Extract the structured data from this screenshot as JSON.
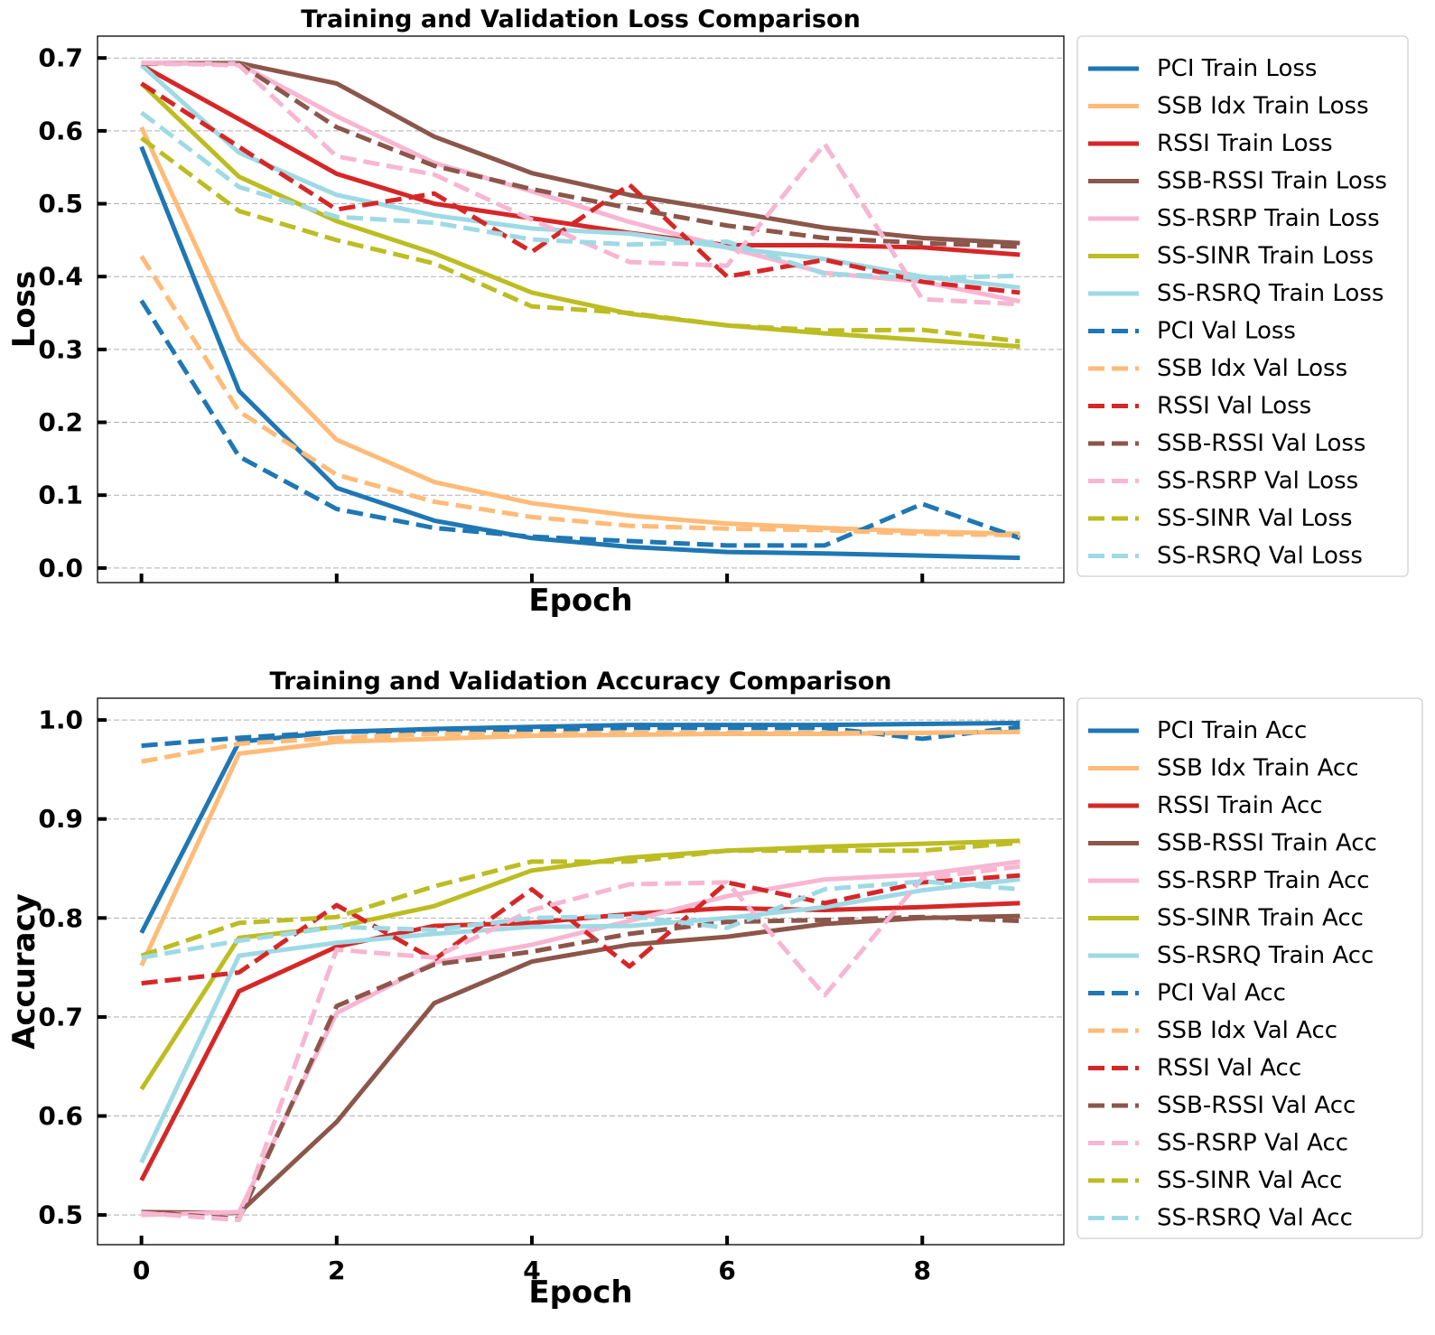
{
  "chart_data": [
    {
      "type": "line",
      "title": "Training and Validation Loss Comparison",
      "xlabel": "Epoch",
      "ylabel": "Loss",
      "xlim": [
        -0.45,
        9.45
      ],
      "ylim": [
        -0.02,
        0.73
      ],
      "xticks": [
        0,
        2,
        4,
        6,
        8
      ],
      "show_xtick_labels": false,
      "yticks": [
        0.0,
        0.1,
        0.2,
        0.3,
        0.4,
        0.5,
        0.6,
        0.7
      ],
      "ytick_labels": [
        "0.0",
        "0.1",
        "0.2",
        "0.3",
        "0.4",
        "0.5",
        "0.6",
        "0.7"
      ],
      "grid": "y-dashed",
      "legend": "outside-right",
      "x": [
        0,
        1,
        2,
        3,
        4,
        5,
        6,
        7,
        8,
        9
      ],
      "series": [
        {
          "name": "PCI Train Loss",
          "color": "#1f77b4",
          "dash": "solid",
          "values": [
            0.578,
            0.243,
            0.11,
            0.065,
            0.041,
            0.029,
            0.022,
            0.02,
            0.017,
            0.014
          ]
        },
        {
          "name": "SSB Idx Train Loss",
          "color": "#ffbb78",
          "dash": "solid",
          "values": [
            0.605,
            0.313,
            0.176,
            0.118,
            0.089,
            0.072,
            0.061,
            0.055,
            0.05,
            0.047
          ]
        },
        {
          "name": "RSSI Train Loss",
          "color": "#d62728",
          "dash": "solid",
          "values": [
            0.69,
            0.616,
            0.541,
            0.5,
            0.48,
            0.46,
            0.443,
            0.443,
            0.44,
            0.43
          ]
        },
        {
          "name": "SSB-RSSI Train Loss",
          "color": "#8c564b",
          "dash": "solid",
          "values": [
            0.693,
            0.693,
            0.665,
            0.592,
            0.542,
            0.512,
            0.49,
            0.467,
            0.453,
            0.446
          ]
        },
        {
          "name": "SS-RSRP Train Loss",
          "color": "#f7b6d2",
          "dash": "solid",
          "values": [
            0.693,
            0.692,
            0.62,
            0.556,
            0.517,
            0.475,
            0.44,
            0.405,
            0.393,
            0.366
          ]
        },
        {
          "name": "SS-SINR Train Loss",
          "color": "#bcbd22",
          "dash": "solid",
          "values": [
            0.665,
            0.537,
            0.476,
            0.432,
            0.378,
            0.349,
            0.333,
            0.322,
            0.313,
            0.304
          ]
        },
        {
          "name": "SS-RSRQ Train Loss",
          "color": "#9edae5",
          "dash": "solid",
          "values": [
            0.69,
            0.57,
            0.512,
            0.484,
            0.466,
            0.459,
            0.44,
            0.424,
            0.4,
            0.385
          ]
        },
        {
          "name": "PCI Val Loss",
          "color": "#1f77b4",
          "dash": "dashed",
          "values": [
            0.367,
            0.153,
            0.081,
            0.055,
            0.043,
            0.037,
            0.031,
            0.031,
            0.088,
            0.041
          ]
        },
        {
          "name": "SSB Idx Val Loss",
          "color": "#ffbb78",
          "dash": "dashed",
          "values": [
            0.428,
            0.215,
            0.128,
            0.091,
            0.07,
            0.058,
            0.054,
            0.052,
            0.047,
            0.045
          ]
        },
        {
          "name": "RSSI Val Loss",
          "color": "#d62728",
          "dash": "dashed",
          "values": [
            0.665,
            0.578,
            0.492,
            0.514,
            0.434,
            0.526,
            0.4,
            0.423,
            0.393,
            0.378
          ]
        },
        {
          "name": "SSB-RSSI Val Loss",
          "color": "#8c564b",
          "dash": "dashed",
          "values": [
            0.692,
            0.692,
            0.605,
            0.552,
            0.52,
            0.494,
            0.47,
            0.453,
            0.446,
            0.441
          ]
        },
        {
          "name": "SS-RSRP Val Loss",
          "color": "#f7b6d2",
          "dash": "dashed",
          "values": [
            0.693,
            0.69,
            0.565,
            0.54,
            0.478,
            0.42,
            0.415,
            0.582,
            0.369,
            0.362
          ]
        },
        {
          "name": "SS-SINR Val Loss",
          "color": "#bcbd22",
          "dash": "dashed",
          "values": [
            0.59,
            0.49,
            0.45,
            0.418,
            0.359,
            0.35,
            0.333,
            0.326,
            0.327,
            0.311
          ]
        },
        {
          "name": "SS-RSRQ Val Loss",
          "color": "#9edae5",
          "dash": "dashed",
          "values": [
            0.625,
            0.523,
            0.482,
            0.474,
            0.451,
            0.444,
            0.448,
            0.404,
            0.398,
            0.401
          ]
        }
      ]
    },
    {
      "type": "line",
      "title": "Training and Validation Accuracy Comparison",
      "xlabel": "Epoch",
      "ylabel": "Accuracy",
      "xlim": [
        -0.45,
        9.45
      ],
      "ylim": [
        0.47,
        1.022
      ],
      "xticks": [
        0,
        2,
        4,
        6,
        8
      ],
      "xtick_labels": [
        "0",
        "2",
        "4",
        "6",
        "8"
      ],
      "show_xtick_labels": true,
      "yticks": [
        0.5,
        0.6,
        0.7,
        0.8,
        0.9,
        1.0
      ],
      "ytick_labels": [
        "0.5",
        "0.6",
        "0.7",
        "0.8",
        "0.9",
        "1.0"
      ],
      "grid": "y-dashed",
      "legend": "outside-right",
      "x": [
        0,
        1,
        2,
        3,
        4,
        5,
        6,
        7,
        8,
        9
      ],
      "series": [
        {
          "name": "PCI Train Acc",
          "color": "#1f77b4",
          "dash": "solid",
          "values": [
            0.785,
            0.978,
            0.988,
            0.991,
            0.993,
            0.995,
            0.995,
            0.995,
            0.996,
            0.997
          ]
        },
        {
          "name": "SSB Idx Train Acc",
          "color": "#ffbb78",
          "dash": "solid",
          "values": [
            0.752,
            0.966,
            0.978,
            0.981,
            0.984,
            0.985,
            0.986,
            0.986,
            0.987,
            0.988
          ]
        },
        {
          "name": "RSSI Train Acc",
          "color": "#d62728",
          "dash": "solid",
          "values": [
            0.535,
            0.726,
            0.771,
            0.792,
            0.795,
            0.804,
            0.81,
            0.808,
            0.811,
            0.815
          ]
        },
        {
          "name": "SSB-RSSI Train Acc",
          "color": "#8c564b",
          "dash": "solid",
          "values": [
            0.503,
            0.502,
            0.594,
            0.714,
            0.756,
            0.773,
            0.781,
            0.794,
            0.8,
            0.802
          ]
        },
        {
          "name": "SS-RSRP Train Acc",
          "color": "#f7b6d2",
          "dash": "solid",
          "values": [
            0.5,
            0.503,
            0.704,
            0.755,
            0.773,
            0.797,
            0.822,
            0.839,
            0.844,
            0.857
          ]
        },
        {
          "name": "SS-SINR Train Acc",
          "color": "#bcbd22",
          "dash": "solid",
          "values": [
            0.627,
            0.78,
            0.791,
            0.812,
            0.848,
            0.861,
            0.868,
            0.872,
            0.875,
            0.878
          ]
        },
        {
          "name": "SS-RSRQ Train Acc",
          "color": "#9edae5",
          "dash": "solid",
          "values": [
            0.553,
            0.762,
            0.775,
            0.784,
            0.791,
            0.792,
            0.8,
            0.811,
            0.828,
            0.839
          ]
        },
        {
          "name": "PCI Val Acc",
          "color": "#1f77b4",
          "dash": "dashed",
          "values": [
            0.974,
            0.982,
            0.988,
            0.989,
            0.99,
            0.992,
            0.992,
            0.992,
            0.981,
            0.993
          ]
        },
        {
          "name": "SSB Idx Val Acc",
          "color": "#ffbb78",
          "dash": "dashed",
          "values": [
            0.958,
            0.976,
            0.982,
            0.986,
            0.986,
            0.987,
            0.987,
            0.987,
            0.987,
            0.988
          ]
        },
        {
          "name": "RSSI Val Acc",
          "color": "#d62728",
          "dash": "dashed",
          "values": [
            0.734,
            0.745,
            0.813,
            0.758,
            0.829,
            0.751,
            0.836,
            0.815,
            0.836,
            0.843
          ]
        },
        {
          "name": "SSB-RSSI Val Acc",
          "color": "#8c564b",
          "dash": "dashed",
          "values": [
            0.503,
            0.496,
            0.711,
            0.753,
            0.766,
            0.784,
            0.796,
            0.798,
            0.801,
            0.797
          ]
        },
        {
          "name": "SS-RSRP Val Acc",
          "color": "#f7b6d2",
          "dash": "dashed",
          "values": [
            0.502,
            0.495,
            0.768,
            0.76,
            0.808,
            0.834,
            0.836,
            0.722,
            0.84,
            0.852
          ]
        },
        {
          "name": "SS-SINR Val Acc",
          "color": "#bcbd22",
          "dash": "dashed",
          "values": [
            0.762,
            0.795,
            0.801,
            0.832,
            0.857,
            0.857,
            0.868,
            0.868,
            0.868,
            0.876
          ]
        },
        {
          "name": "SS-RSRQ Val Acc",
          "color": "#9edae5",
          "dash": "dashed",
          "values": [
            0.76,
            0.777,
            0.791,
            0.788,
            0.8,
            0.802,
            0.79,
            0.829,
            0.837,
            0.829
          ]
        }
      ]
    }
  ]
}
